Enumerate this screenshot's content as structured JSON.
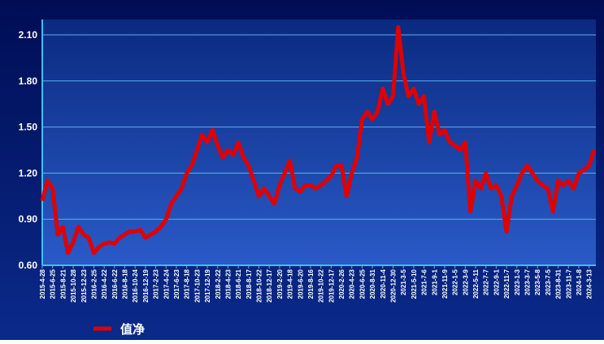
{
  "chart_data": {
    "type": "line",
    "categories": [
      "2015-4-28",
      null,
      "2015-6-25",
      null,
      "2015-8-21",
      null,
      "2015-10-28",
      null,
      "2015-12-23",
      null,
      "2016-2-25",
      null,
      "2016-4-22",
      null,
      "2016-6-22",
      null,
      "2016-8-18",
      null,
      "2016-10-24",
      null,
      "2016-12-19",
      null,
      "2017-2-23",
      null,
      "2017-4-24",
      null,
      "2017-6-23",
      null,
      "2017-8-18",
      null,
      "2017-10-23",
      null,
      "2017-12-19",
      null,
      "2018-2-22",
      null,
      "2018-4-23",
      null,
      "2018-6-21",
      null,
      "2018-8-17",
      null,
      "2018-10-22",
      null,
      "2018-12-17",
      null,
      "2019-2-20",
      null,
      "2019-4-18",
      null,
      "2019-6-20",
      null,
      "2019-8-16",
      null,
      "2019-10-22",
      null,
      "2019-12-17",
      null,
      "2020-2-26",
      null,
      "2020-4-23",
      null,
      "2020-6-25",
      null,
      "2020-8-31",
      null,
      "2020-11-4",
      null,
      "2020-12-30",
      null,
      "2021-3-5",
      null,
      "2021-5-10",
      null,
      "2021-7-6",
      null,
      "2021-9-1",
      null,
      "2021-11-9",
      null,
      "2022-1-5",
      null,
      "2022-3-9",
      null,
      "2022-5-11",
      null,
      "2022-7-7",
      null,
      "2022-9-1",
      null,
      "2022-11-7",
      null,
      "2023-1-3",
      null,
      "2023-3-7",
      null,
      "2023-5-8",
      null,
      "2023-7-5",
      null,
      "2023-8-31",
      null,
      "2023-11-7",
      null,
      "2024-1-8",
      null,
      "2024-3-13",
      null
    ],
    "series": [
      {
        "name": "值净",
        "color": "#e00000",
        "values": [
          1.02,
          1.15,
          1.1,
          0.8,
          0.85,
          0.68,
          0.75,
          0.85,
          0.8,
          0.78,
          0.68,
          0.72,
          0.74,
          0.75,
          0.74,
          0.78,
          0.8,
          0.82,
          0.82,
          0.83,
          0.78,
          0.8,
          0.82,
          0.85,
          0.9,
          1.0,
          1.05,
          1.1,
          1.2,
          1.25,
          1.35,
          1.45,
          1.4,
          1.48,
          1.38,
          1.3,
          1.35,
          1.32,
          1.4,
          1.3,
          1.25,
          1.15,
          1.05,
          1.1,
          1.05,
          1.0,
          1.12,
          1.2,
          1.28,
          1.1,
          1.08,
          1.12,
          1.12,
          1.1,
          1.12,
          1.15,
          1.18,
          1.25,
          1.25,
          1.05,
          1.2,
          1.3,
          1.55,
          1.6,
          1.55,
          1.6,
          1.75,
          1.65,
          1.7,
          2.15,
          1.85,
          1.7,
          1.75,
          1.65,
          1.7,
          1.4,
          1.6,
          1.45,
          1.48,
          1.4,
          1.38,
          1.35,
          1.4,
          0.95,
          1.15,
          1.1,
          1.2,
          1.1,
          1.12,
          1.05,
          0.82,
          1.05,
          1.12,
          1.2,
          1.25,
          1.2,
          1.15,
          1.12,
          1.1,
          0.95,
          1.15,
          1.12,
          1.15,
          1.1,
          1.2,
          1.22,
          1.25,
          1.35
        ]
      }
    ],
    "ylim": [
      0.6,
      2.2
    ],
    "yticks": [
      {
        "value": 0.6,
        "label": "0.60"
      },
      {
        "value": 0.9,
        "label": "0.90"
      },
      {
        "value": 1.2,
        "label": "1.20"
      },
      {
        "value": 1.5,
        "label": "1.50"
      },
      {
        "value": 1.8,
        "label": "1.80"
      },
      {
        "value": 2.1,
        "label": "2.10"
      }
    ],
    "grid": true
  }
}
